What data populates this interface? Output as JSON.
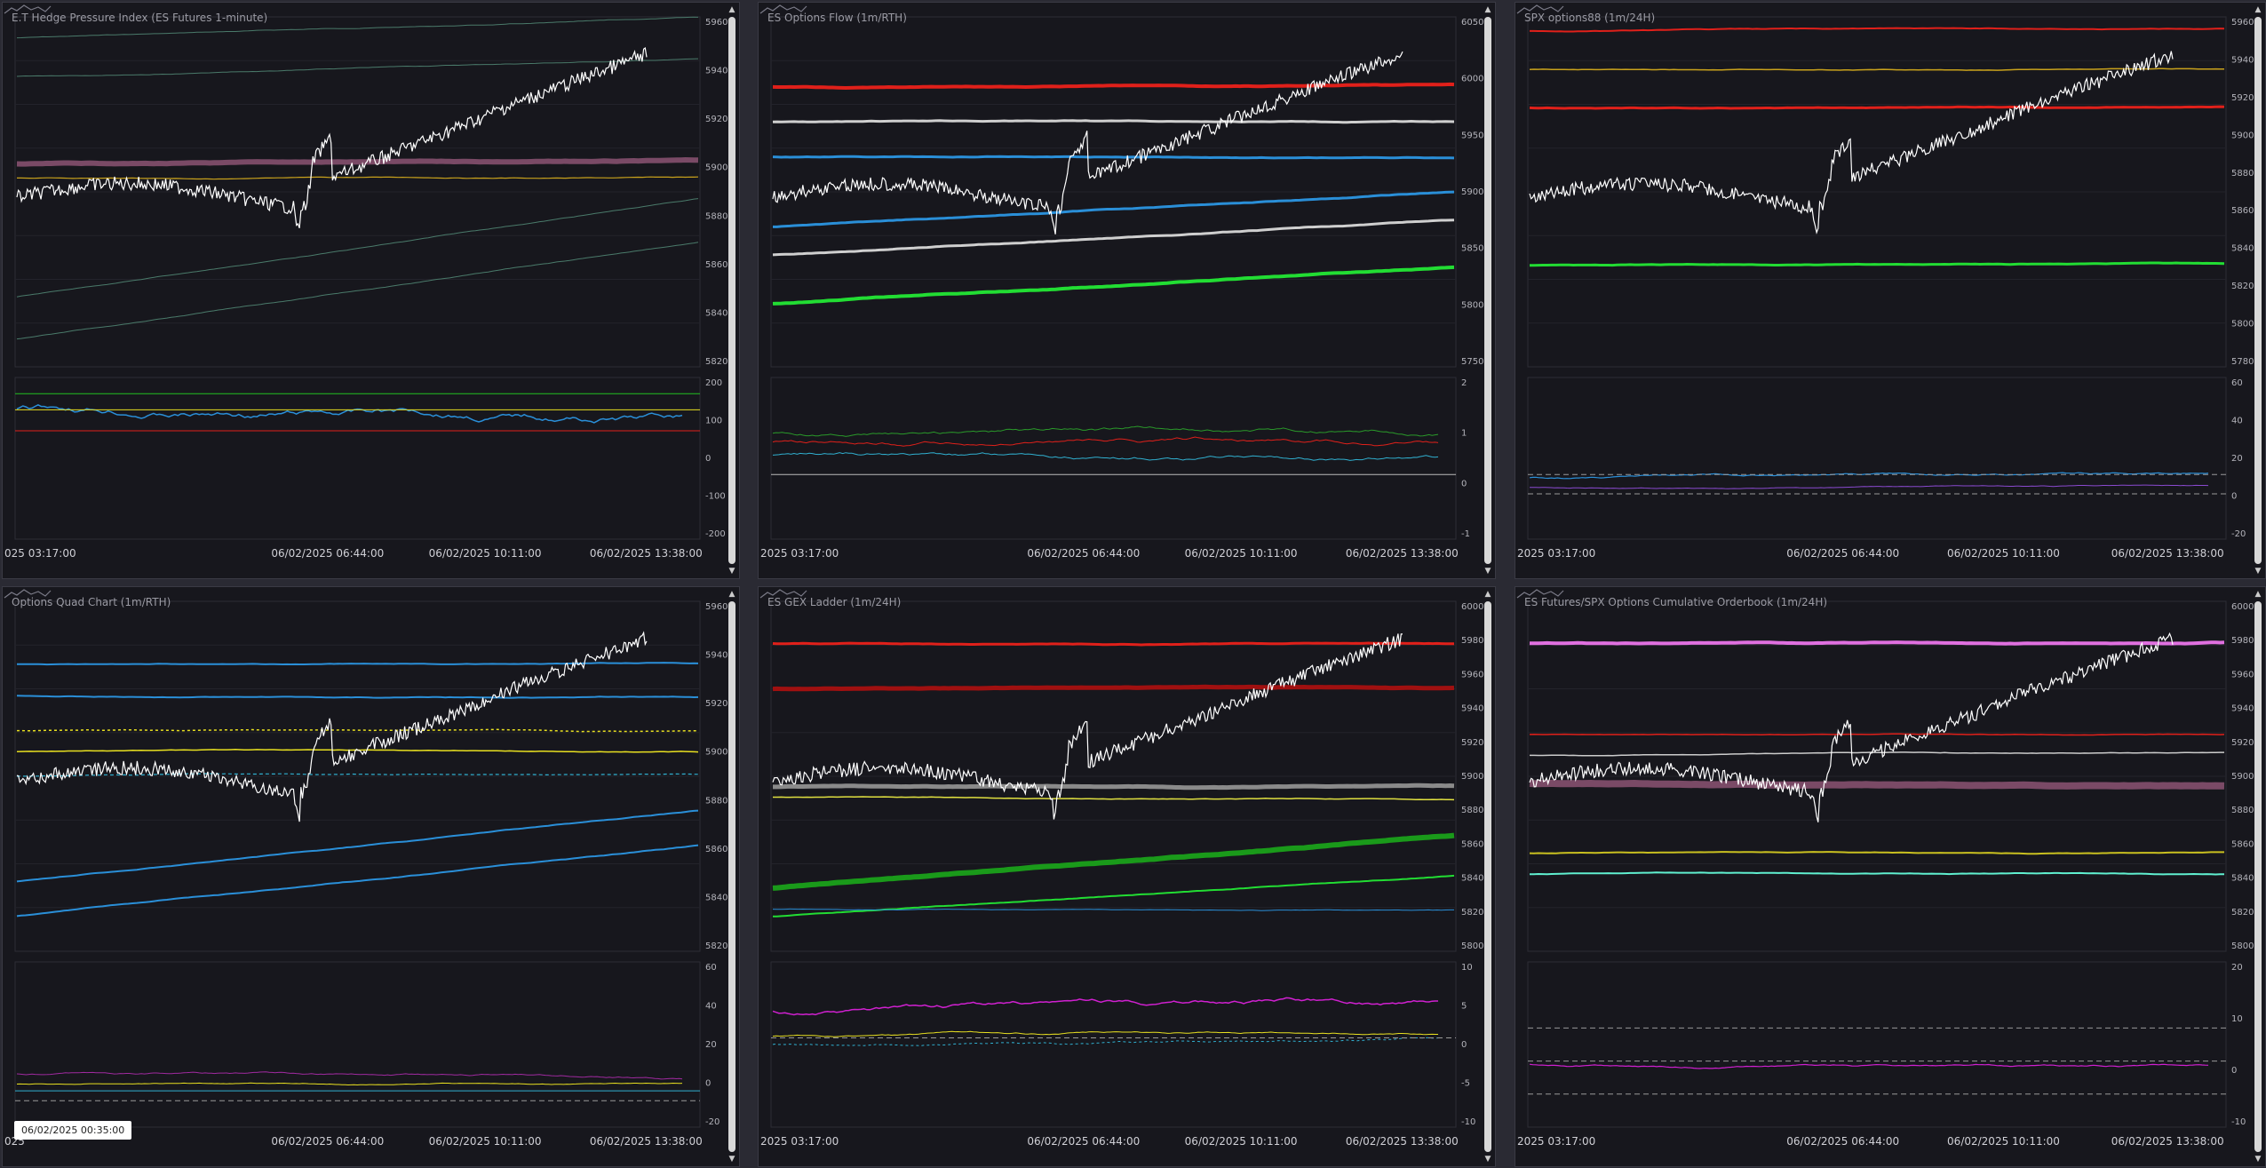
{
  "panels": [
    {
      "id": "p1",
      "title": "E.T Hedge Pressure Index (ES Futures 1-minute)",
      "y_axis_top": [
        "5960",
        "5940",
        "5920",
        "5900",
        "5880",
        "5860",
        "5840",
        "5820"
      ],
      "y_axis_bottom": [
        "200",
        "100",
        "0",
        "-100",
        "-200"
      ],
      "time_labels": [
        "025 03:17:00",
        "06/02/2025 06:44:00",
        "06/02/2025 10:11:00",
        "06/02/2025 13:38:00"
      ]
    },
    {
      "id": "p2",
      "title": "ES Options Flow (1m/RTH)",
      "y_axis_top": [
        "6050",
        "6000",
        "5950",
        "5900",
        "5850",
        "5800",
        "5750"
      ],
      "y_axis_bottom": [
        "2",
        "1",
        "0",
        "-1"
      ],
      "time_labels": [
        "2025 03:17:00",
        "06/02/2025 06:44:00",
        "06/02/2025 10:11:00",
        "06/02/2025 13:38:00"
      ]
    },
    {
      "id": "p3",
      "title": "SPX options88 (1m/24H)",
      "y_axis_top": [
        "5960",
        "5940",
        "5920",
        "5900",
        "5880",
        "5860",
        "5840",
        "5820",
        "5800",
        "5780"
      ],
      "y_axis_bottom": [
        "60",
        "40",
        "20",
        "0",
        "-20"
      ],
      "time_labels": [
        "2025 03:17:00",
        "06/02/2025 06:44:00",
        "06/02/2025 10:11:00",
        "06/02/2025 13:38:00"
      ]
    },
    {
      "id": "p4",
      "title": "Options Quad Chart (1m/RTH)",
      "y_axis_top": [
        "5960",
        "5940",
        "5920",
        "5900",
        "5880",
        "5860",
        "5840",
        "5820"
      ],
      "y_axis_bottom": [
        "60",
        "40",
        "20",
        "0",
        "-20"
      ],
      "time_labels": [
        "025",
        "06/02/2025 06:44:00",
        "06/02/2025 10:11:00",
        "06/02/2025 13:38:00"
      ]
    },
    {
      "id": "p5",
      "title": "ES GEX Ladder (1m/24H)",
      "y_axis_top": [
        "6000",
        "5980",
        "5960",
        "5940",
        "5920",
        "5900",
        "5880",
        "5860",
        "5840",
        "5820",
        "5800"
      ],
      "y_axis_bottom": [
        "10",
        "5",
        "0",
        "-5",
        "-10"
      ],
      "time_labels": [
        "2025 03:17:00",
        "06/02/2025 06:44:00",
        "06/02/2025 10:11:00",
        "06/02/2025 13:38:00"
      ]
    },
    {
      "id": "p6",
      "title": "ES Futures/SPX Options Cumulative Orderbook (1m/24H)",
      "y_axis_top": [
        "6000",
        "5980",
        "5960",
        "5940",
        "5920",
        "5900",
        "5880",
        "5860",
        "5840",
        "5820",
        "5800"
      ],
      "y_axis_bottom": [
        "20",
        "10",
        "0",
        "-10"
      ],
      "time_labels": [
        "2025 03:17:00",
        "06/02/2025 06:44:00",
        "06/02/2025 10:11:00",
        "06/02/2025 13:38:00"
      ]
    }
  ],
  "tooltip": "06/02/2025 00:35:00",
  "colors": {
    "bg": "#17171d",
    "price": "#ffffff",
    "red": "#e0201a",
    "green": "#22dd33",
    "blue": "#2a8fd8",
    "gold": "#c9a21c",
    "yellow": "#e8e020",
    "magenta": "#d020d0",
    "grey": "#9a9a9a"
  },
  "icons": {
    "scroll_up": "triangle-up-icon",
    "scroll_down": "triangle-down-icon",
    "navigator": "mini-chart-icon"
  }
}
